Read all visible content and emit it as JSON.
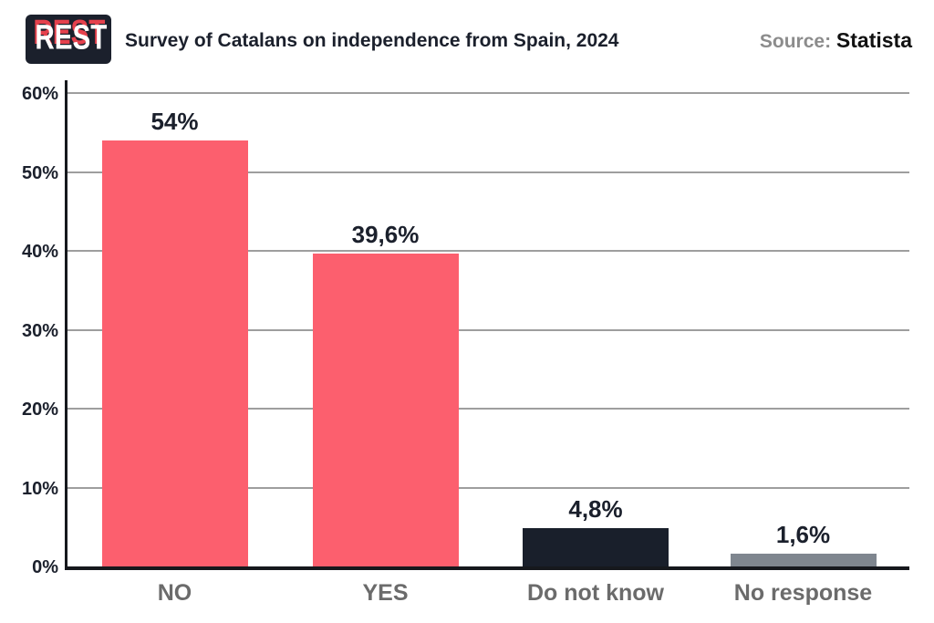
{
  "header": {
    "logo_text": "REST",
    "title": "Survey of Catalans on independence from Spain, 2024",
    "source_label": "Source:",
    "source_value": "Statista"
  },
  "chart_data": {
    "type": "bar",
    "title": "Survey of Catalans on independence from Spain, 2024",
    "source": "Statista",
    "categories": [
      "NO",
      "YES",
      "Do not know",
      "No response"
    ],
    "values": [
      54,
      39.6,
      4.8,
      1.6
    ],
    "value_labels": [
      "54%",
      "39,6%",
      "4,8%",
      "1,6%"
    ],
    "bar_colors": [
      "#fc5f6e",
      "#fc5f6e",
      "#191f2b",
      "#7f868f"
    ],
    "xlabel": "",
    "ylabel": "",
    "ylim": [
      0,
      60
    ],
    "yticks": [
      "0%",
      "10%",
      "20%",
      "30%",
      "40%",
      "50%",
      "60%"
    ],
    "grid": true,
    "legend": false
  },
  "colors": {
    "accent_red": "#fc5f6e",
    "dark_navy": "#1b202c",
    "gray_bar": "#7f868f",
    "gridline": "#9e9e9e",
    "axis": "#16181d",
    "category_label": "#6b6b6b",
    "source_label": "#8c8c8c",
    "logo_red": "#e5414d"
  }
}
